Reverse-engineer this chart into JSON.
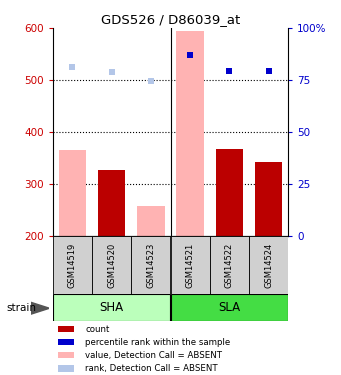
{
  "title": "GDS526 / D86039_at",
  "samples": [
    "GSM14519",
    "GSM14520",
    "GSM14523",
    "GSM14521",
    "GSM14522",
    "GSM14524"
  ],
  "ylim": [
    200,
    600
  ],
  "y_ticks": [
    200,
    300,
    400,
    500,
    600
  ],
  "y2_ticks": [
    0,
    25,
    50,
    75,
    100
  ],
  "y2_labels": [
    "0",
    "25",
    "50",
    "75",
    "100%"
  ],
  "bar_values": [
    365,
    328,
    258,
    595,
    368,
    342
  ],
  "bar_is_absent": [
    true,
    false,
    true,
    true,
    false,
    false
  ],
  "rank_values": [
    525,
    516,
    498,
    548,
    518,
    517
  ],
  "rank_is_absent": [
    true,
    true,
    true,
    false,
    false,
    false
  ],
  "color_bar_absent": "#ffb3b3",
  "color_bar_present": "#bb0000",
  "color_rank_absent": "#b3c6e8",
  "color_rank_present": "#0000cc",
  "ylabel_color": "#cc0000",
  "y2label_color": "#0000cc",
  "baseline": 200,
  "bar_width": 0.7,
  "sha_color": "#bbffbb",
  "sla_color": "#44dd44",
  "gray_box": "#d0d0d0",
  "legend_items": [
    [
      "#bb0000",
      "count"
    ],
    [
      "#0000cc",
      "percentile rank within the sample"
    ],
    [
      "#ffb3b3",
      "value, Detection Call = ABSENT"
    ],
    [
      "#b3c6e8",
      "rank, Detection Call = ABSENT"
    ]
  ]
}
